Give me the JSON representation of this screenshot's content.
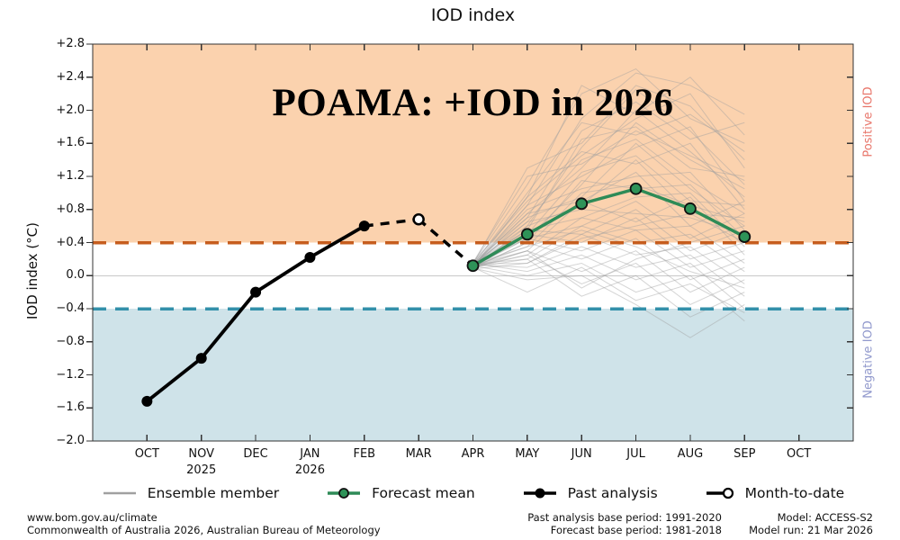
{
  "page": {
    "title": "IOD index"
  },
  "chart_data": {
    "type": "line",
    "title": "IOD index",
    "ylabel": "IOD index (°C)",
    "ylim": [
      -2.0,
      2.8
    ],
    "ytick_step": 0.4,
    "grid": "zero-line-only",
    "categories": [
      "OCT",
      "NOV",
      "DEC",
      "JAN",
      "FEB",
      "MAR",
      "APR",
      "MAY",
      "JUN",
      "JUL",
      "AUG",
      "SEP",
      "OCT"
    ],
    "year_labels": [
      {
        "index": 1,
        "label": "2025"
      },
      {
        "index": 3,
        "label": "2026"
      }
    ],
    "thresholds": {
      "positive_iod": 0.4,
      "negative_iod": -0.4
    },
    "annotations": {
      "headline": "POAMA: +IOD in 2026",
      "positive_label": "Positive IOD",
      "negative_label": "Negative IOD"
    },
    "series": {
      "past_analysis": {
        "name": "Past analysis",
        "x_index": [
          0,
          1,
          2,
          3,
          4
        ],
        "values": [
          -1.52,
          -1.0,
          -0.2,
          0.22,
          0.6
        ]
      },
      "month_to_date": {
        "name": "Month-to-date",
        "x_index": [
          4,
          5
        ],
        "values": [
          0.6,
          0.68
        ]
      },
      "forecast_connector": {
        "name": "connector",
        "x_index": [
          5,
          6
        ],
        "values": [
          0.68,
          0.12
        ]
      },
      "forecast_mean": {
        "name": "Forecast mean",
        "x_index": [
          6,
          7,
          8,
          9,
          10,
          11
        ],
        "values": [
          0.12,
          0.5,
          0.87,
          1.05,
          0.81,
          0.47
        ]
      },
      "ensemble": {
        "name": "Ensemble member",
        "x_index": [
          6,
          7,
          8,
          9,
          10,
          11
        ],
        "members": [
          [
            0.12,
            0.85,
            1.9,
            2.45,
            2.3,
            1.95
          ],
          [
            0.15,
            1.1,
            2.2,
            2.5,
            1.9,
            1.6
          ],
          [
            0.1,
            0.95,
            2.3,
            1.95,
            2.4,
            1.7
          ],
          [
            0.14,
            1.3,
            1.6,
            2.3,
            2.05,
            1.4
          ],
          [
            0.11,
            0.7,
            1.75,
            2.1,
            1.65,
            1.85
          ],
          [
            0.16,
            0.9,
            1.45,
            1.9,
            2.2,
            1.3
          ],
          [
            0.09,
            0.6,
            1.55,
            2.25,
            1.75,
            1.1
          ],
          [
            0.13,
            1.0,
            1.85,
            1.7,
            1.95,
            1.5
          ],
          [
            0.12,
            0.75,
            1.3,
            2.0,
            1.5,
            0.95
          ],
          [
            0.15,
            0.55,
            1.65,
            1.8,
            1.3,
            1.2
          ],
          [
            0.1,
            0.85,
            1.2,
            1.55,
            1.8,
            0.9
          ],
          [
            0.14,
            0.65,
            1.4,
            1.65,
            1.15,
            0.75
          ],
          [
            0.11,
            0.45,
            1.1,
            1.85,
            1.4,
            1.05
          ],
          [
            0.13,
            0.95,
            1.5,
            1.35,
            1.6,
            0.8
          ],
          [
            0.16,
            0.7,
            0.95,
            1.6,
            1.05,
            0.6
          ],
          [
            0.09,
            0.5,
            1.25,
            1.45,
            0.9,
            0.85
          ],
          [
            0.12,
            0.8,
            1.05,
            1.2,
            1.25,
            0.55
          ],
          [
            0.15,
            0.6,
            0.85,
            1.4,
            0.75,
            0.7
          ],
          [
            0.1,
            0.4,
            1.15,
            1.05,
            1.1,
            0.45
          ],
          [
            0.13,
            0.75,
            0.9,
            1.25,
            0.6,
            0.9
          ],
          [
            0.11,
            0.55,
            0.7,
            0.95,
            1.0,
            0.35
          ],
          [
            0.14,
            0.35,
            1.0,
            1.1,
            0.85,
            0.65
          ],
          [
            0.12,
            0.65,
            0.8,
            0.75,
            0.7,
            0.5
          ],
          [
            0.16,
            0.45,
            0.6,
            0.9,
            0.45,
            0.75
          ],
          [
            0.09,
            0.3,
            0.9,
            0.65,
            0.95,
            0.25
          ],
          [
            0.13,
            0.55,
            0.5,
            0.8,
            0.3,
            0.55
          ],
          [
            0.11,
            0.25,
            0.7,
            0.55,
            0.6,
            0.15
          ],
          [
            0.15,
            0.5,
            0.4,
            0.7,
            0.2,
            0.4
          ],
          [
            0.1,
            0.2,
            0.6,
            0.4,
            0.5,
            0.05
          ],
          [
            0.12,
            0.45,
            0.3,
            0.55,
            0.1,
            0.3
          ],
          [
            0.14,
            0.15,
            0.5,
            0.25,
            0.35,
            -0.1
          ],
          [
            0.09,
            0.4,
            0.2,
            0.45,
            -0.05,
            0.2
          ],
          [
            0.13,
            0.1,
            0.35,
            0.1,
            0.25,
            -0.25
          ],
          [
            0.11,
            0.3,
            0.05,
            0.3,
            -0.2,
            0.1
          ],
          [
            0.15,
            0.05,
            0.25,
            -0.05,
            0.15,
            -0.4
          ],
          [
            0.1,
            0.25,
            -0.1,
            0.15,
            -0.35,
            -0.05
          ],
          [
            0.12,
            0.0,
            0.15,
            -0.2,
            0.0,
            -0.55
          ],
          [
            0.14,
            0.2,
            -0.25,
            0.0,
            -0.5,
            -0.2
          ],
          [
            0.09,
            -0.05,
            0.0,
            -0.35,
            -0.75,
            -0.35
          ],
          [
            0.13,
            0.3,
            -0.15,
            0.2,
            0.4,
            0.6
          ],
          [
            0.1,
            -0.2,
            0.1,
            -0.3,
            -0.1,
            -0.45
          ],
          [
            0.12,
            0.35,
            0.55,
            0.35,
            0.05,
            -0.15
          ],
          [
            0.16,
            1.2,
            1.35,
            1.75,
            1.45,
            1.15
          ],
          [
            0.08,
            0.15,
            0.45,
            0.6,
            0.75,
            0.4
          ]
        ]
      }
    }
  },
  "colors": {
    "positive_fill": "#fbd2ae",
    "negative_fill": "#cfe3e9",
    "positive_dash": "#c65d1e",
    "negative_dash": "#3390aa",
    "forecast_line": "#2e8b57",
    "forecast_marker": "#2e9358",
    "past_line": "#000000",
    "ensemble_line": "#a0a0a0",
    "zero_line": "#c8c8c8",
    "frame": "#333333",
    "positive_text": "#e8756a",
    "negative_text": "#9098cc"
  },
  "legend": {
    "items": [
      {
        "key": "ensemble",
        "label": "Ensemble member"
      },
      {
        "key": "forecast_mean",
        "label": "Forecast mean"
      },
      {
        "key": "past_analysis",
        "label": "Past analysis"
      },
      {
        "key": "month_to_date",
        "label": "Month-to-date"
      }
    ]
  },
  "footer": {
    "site": "www.bom.gov.au/climate",
    "copyright": "Commonwealth of Australia 2026, Australian Bureau of Meteorology",
    "past_base": "Past analysis base period: 1991-2020",
    "forecast_base": "Forecast base period: 1981-2018",
    "model": "Model: ACCESS-S2",
    "model_run": "Model run: 21 Mar 2026"
  }
}
